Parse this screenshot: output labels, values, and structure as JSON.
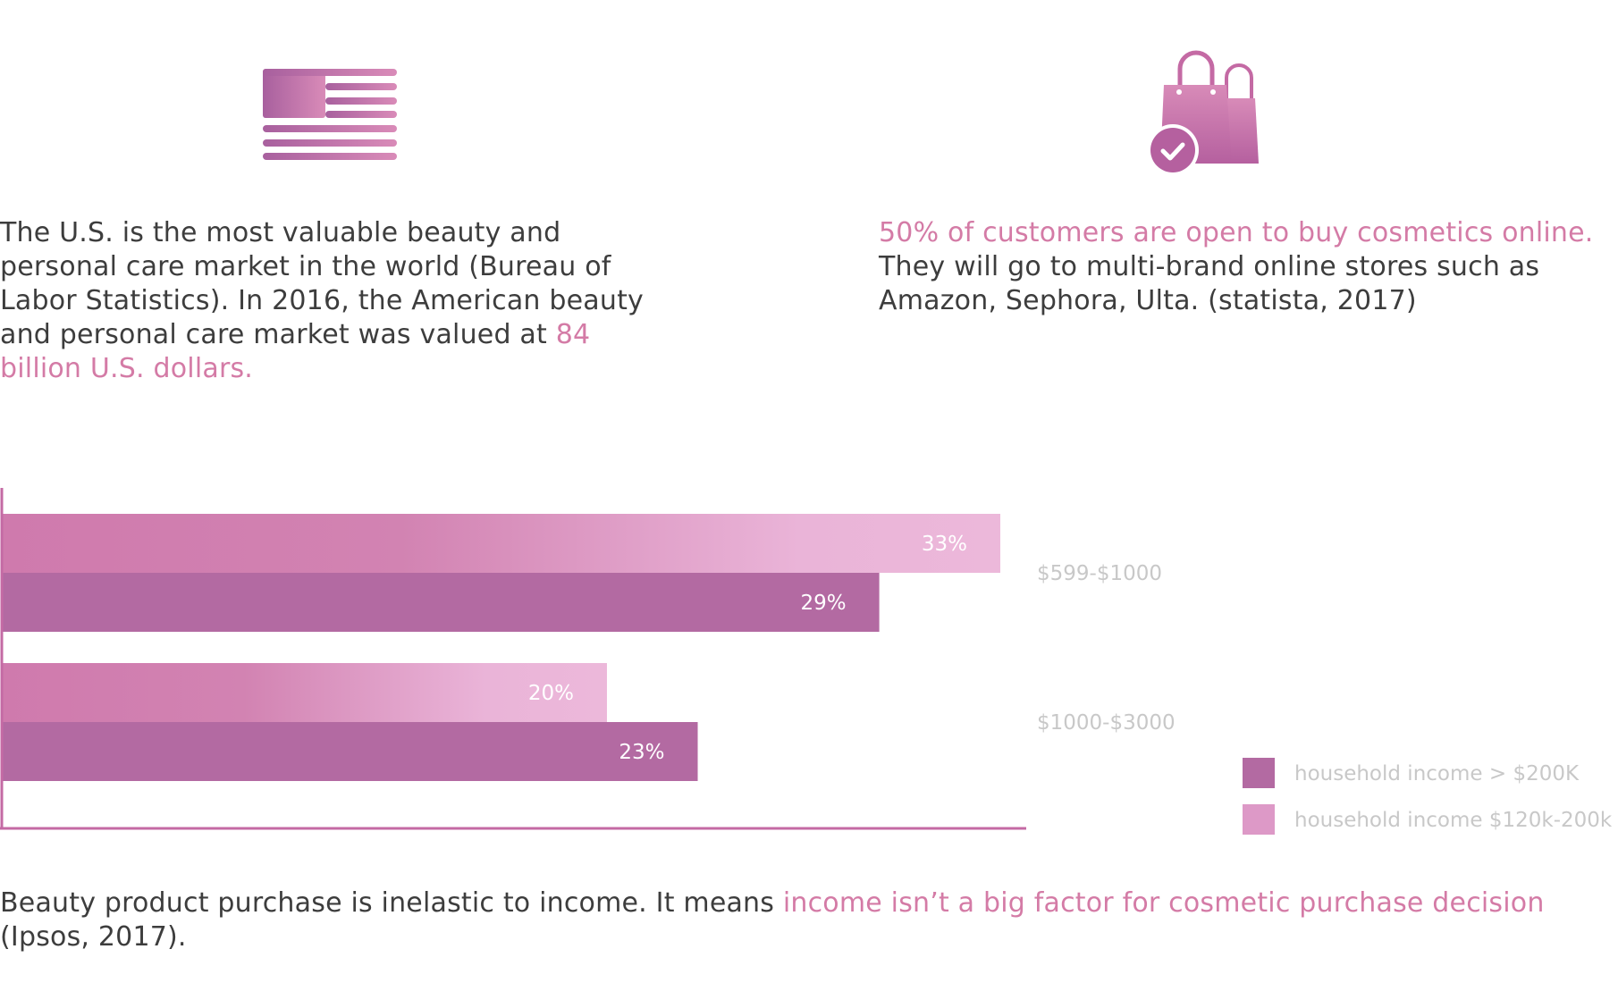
{
  "texts": {
    "us_market": {
      "plain": "The U.S. is the most valuable beauty and personal care market in the world (Bureau of Labor Statistics). In 2016, the American beauty and personal care market was valued at ",
      "highlight": "84 billion U.S. dollars."
    },
    "online": {
      "highlight": "50% of customers are open to buy cosmetics online.",
      "plain": " They will go to multi-brand online stores such as Amazon, Sephora, Ulta. (statista, 2017)"
    },
    "inelastic": {
      "plain": "Beauty product purchase is inelastic to income. It means ",
      "highlight": "income isn’t a big factor for cosmetic purchase decision",
      "tail": " (Ipsos, 2017)."
    }
  },
  "icons": {
    "left": "us-flag-icon",
    "right": "shopping-bags-check-icon"
  },
  "colors": {
    "accent_text": "#d47ba6",
    "body_text": "#3d3d3d",
    "series_high": "#b36aa2",
    "series_mid_start": "#cf7aad",
    "series_mid_end": "#ecb8da",
    "axis": "#c46aa4",
    "label_gray": "#c8c8c8"
  },
  "chart_data": {
    "type": "bar",
    "orientation": "horizontal",
    "categories": [
      "$599-$1000",
      "$1000-$3000"
    ],
    "series": [
      {
        "name": "household income $120k-200k",
        "values": [
          33,
          20
        ],
        "labels": [
          "33%",
          "20%"
        ]
      },
      {
        "name": "household income > $200K",
        "values": [
          29,
          23
        ],
        "labels": [
          "29%",
          "23%"
        ]
      }
    ],
    "legend_order": [
      "household income > $200K",
      "household income $120k-200k"
    ],
    "legend_position": "bottom-right",
    "value_unit": "%",
    "title": "",
    "xlabel": "",
    "ylabel": "",
    "grid": false
  }
}
